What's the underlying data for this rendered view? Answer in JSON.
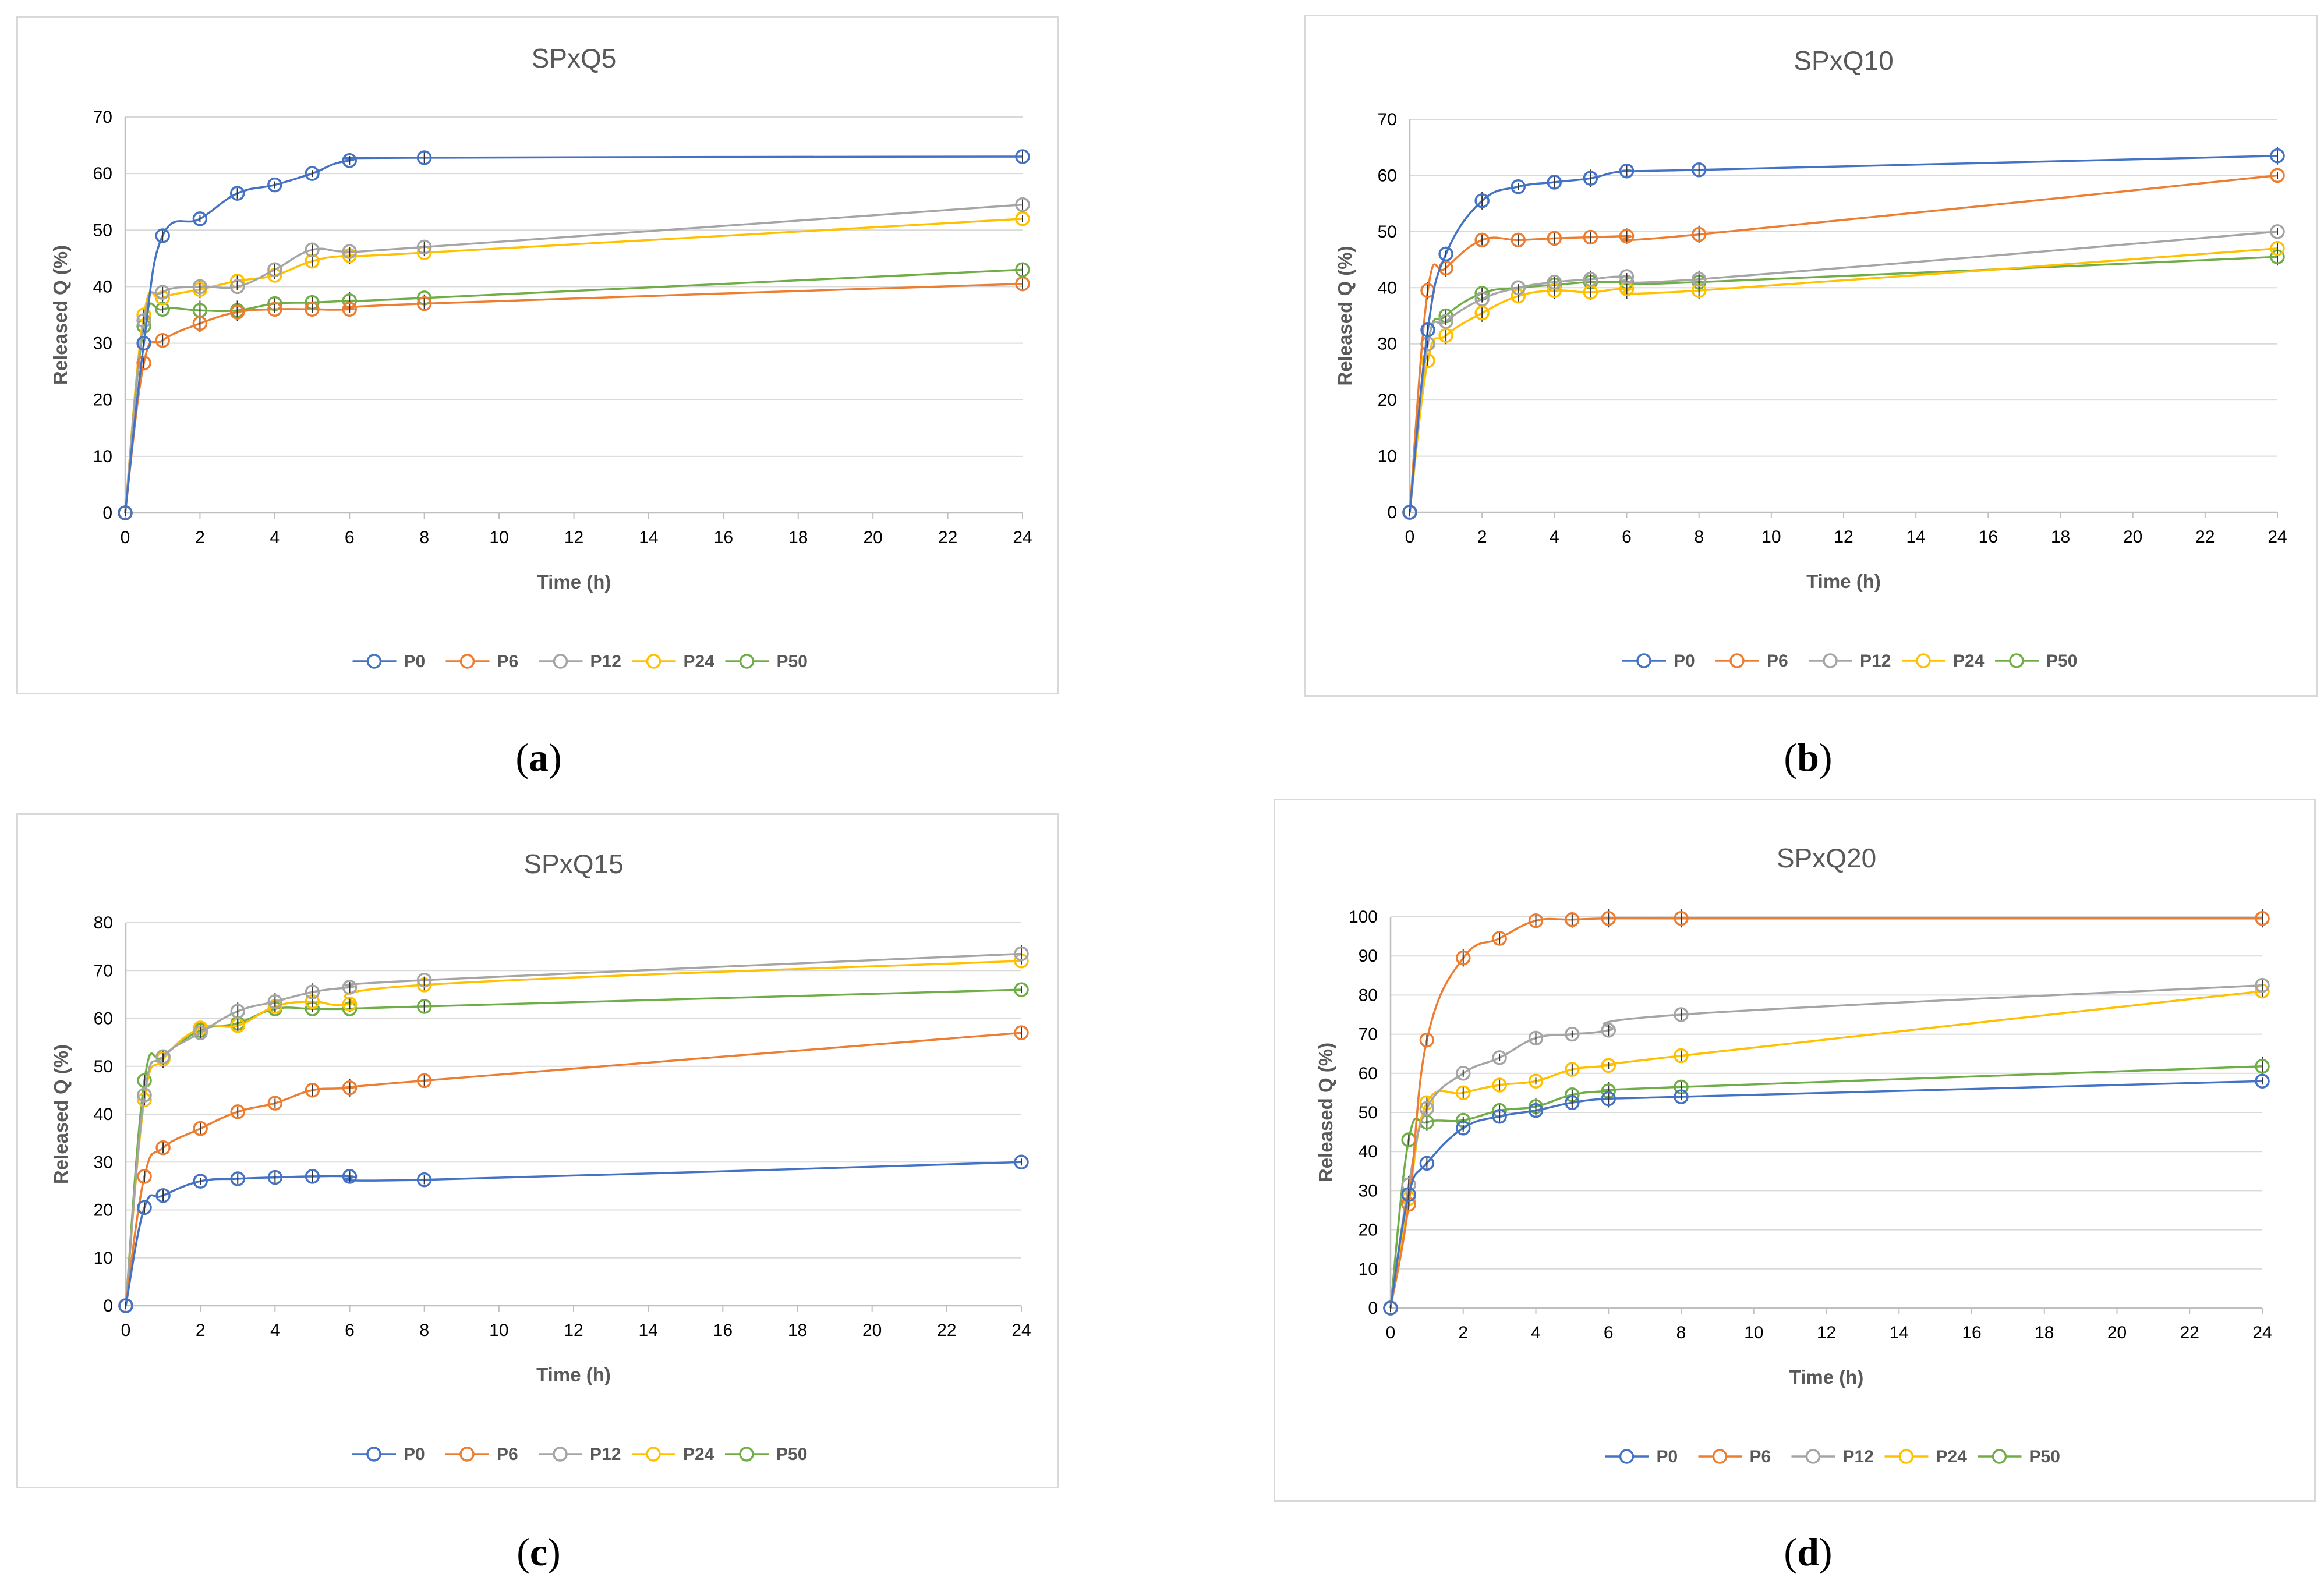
{
  "colors": {
    "P0": "#4472C4",
    "P6": "#ED7D31",
    "P12": "#A5A5A5",
    "P24": "#FFC000",
    "P50": "#70AD47",
    "grid": "#d9d9d9",
    "axis": "#bfbfbf"
  },
  "chart_data": [
    {
      "type": "line",
      "panel": "(a)",
      "panel_letter": "a",
      "title": "SPxQ5",
      "xlabel": "Time (h)",
      "ylabel": "Released Q (%)",
      "xlim": [
        0,
        24
      ],
      "ylim": [
        0,
        70
      ],
      "xticks": [
        0,
        2,
        4,
        6,
        8,
        10,
        12,
        14,
        16,
        18,
        20,
        22,
        24
      ],
      "yticks": [
        0,
        10,
        20,
        30,
        40,
        50,
        60,
        70
      ],
      "grid": true,
      "legend_position": "bottom",
      "x": [
        0,
        0.5,
        1,
        2,
        3,
        4,
        5,
        6,
        8,
        24
      ],
      "series": [
        {
          "name": "P0",
          "values": [
            0,
            30,
            49,
            52,
            56.5,
            58,
            60,
            62.3,
            62.8,
            63
          ]
        },
        {
          "name": "P6",
          "values": [
            0,
            26.5,
            30.5,
            33.5,
            35.5,
            36,
            36,
            36,
            37,
            40.5
          ]
        },
        {
          "name": "P12",
          "values": [
            0,
            34,
            39,
            40,
            40,
            43,
            46.5,
            46.2,
            47,
            54.5
          ]
        },
        {
          "name": "P24",
          "values": [
            0,
            35,
            38,
            39.5,
            41,
            42,
            44.5,
            45.5,
            46,
            52
          ]
        },
        {
          "name": "P50",
          "values": [
            0,
            33,
            36,
            35.8,
            35.8,
            37,
            37.2,
            37.5,
            38,
            43
          ]
        }
      ]
    },
    {
      "type": "line",
      "panel": "(b)",
      "panel_letter": "b",
      "title": "SPxQ10",
      "xlabel": "Time (h)",
      "ylabel": "Released Q (%)",
      "xlim": [
        0,
        24
      ],
      "ylim": [
        0,
        70
      ],
      "xticks": [
        0,
        2,
        4,
        6,
        8,
        10,
        12,
        14,
        16,
        18,
        20,
        22,
        24
      ],
      "yticks": [
        0,
        10,
        20,
        30,
        40,
        50,
        60,
        70
      ],
      "grid": true,
      "legend_position": "bottom",
      "x": [
        0,
        0.5,
        1,
        2,
        3,
        4,
        5,
        6,
        8,
        24
      ],
      "series": [
        {
          "name": "P0",
          "values": [
            0,
            32.5,
            46,
            55.5,
            58,
            58.8,
            59.5,
            60.8,
            61,
            63.5
          ]
        },
        {
          "name": "P6",
          "values": [
            0,
            39.5,
            43.5,
            48.5,
            48.5,
            48.8,
            49,
            49.2,
            49.5,
            60
          ]
        },
        {
          "name": "P12",
          "values": [
            0,
            30,
            34,
            38,
            40,
            41,
            41.5,
            42,
            41.5,
            50
          ]
        },
        {
          "name": "P24",
          "values": [
            0,
            27,
            31.5,
            35.5,
            38.5,
            39.5,
            39.2,
            39.8,
            39.5,
            47
          ]
        },
        {
          "name": "P50",
          "values": [
            0,
            30,
            35,
            39,
            40,
            40.5,
            41,
            41,
            41,
            45.5
          ]
        }
      ]
    },
    {
      "type": "line",
      "panel": "(c)",
      "panel_letter": "c",
      "title": "SPxQ15",
      "xlabel": "Time (h)",
      "ylabel": "Released Q (%)",
      "xlim": [
        0,
        24
      ],
      "ylim": [
        0,
        80
      ],
      "xticks": [
        0,
        2,
        4,
        6,
        8,
        10,
        12,
        14,
        16,
        18,
        20,
        22,
        24
      ],
      "yticks": [
        0,
        10,
        20,
        30,
        40,
        50,
        60,
        70,
        80
      ],
      "grid": true,
      "legend_position": "bottom",
      "x": [
        0,
        0.5,
        1,
        2,
        3,
        4,
        5,
        6,
        8,
        24
      ],
      "series": [
        {
          "name": "P0",
          "values": [
            0,
            20.5,
            23,
            26,
            26.5,
            26.8,
            27,
            27,
            26.3,
            30
          ]
        },
        {
          "name": "P6",
          "values": [
            0,
            27,
            33,
            37,
            40.5,
            42.3,
            45,
            45.5,
            47,
            57
          ]
        },
        {
          "name": "P12",
          "values": [
            0,
            44,
            52,
            57,
            61.5,
            63.5,
            65.5,
            66.5,
            68,
            73.5
          ]
        },
        {
          "name": "P24",
          "values": [
            0,
            43,
            51.5,
            58,
            58.5,
            62.5,
            63.5,
            63,
            67,
            72
          ]
        },
        {
          "name": "P50",
          "values": [
            0,
            47,
            52,
            57.5,
            59,
            62,
            62,
            62,
            62.5,
            66
          ]
        }
      ]
    },
    {
      "type": "line",
      "panel": "(d)",
      "panel_letter": "d",
      "title": "SPxQ20",
      "xlabel": "Time (h)",
      "ylabel": "Released Q (%)",
      "xlim": [
        0,
        24
      ],
      "ylim": [
        0,
        100
      ],
      "xticks": [
        0,
        2,
        4,
        6,
        8,
        10,
        12,
        14,
        16,
        18,
        20,
        22,
        24
      ],
      "yticks": [
        0,
        10,
        20,
        30,
        40,
        50,
        60,
        70,
        80,
        90,
        100
      ],
      "grid": true,
      "legend_position": "bottom",
      "x": [
        0,
        0.5,
        1,
        2,
        3,
        4,
        5,
        6,
        8,
        24
      ],
      "series": [
        {
          "name": "P0",
          "values": [
            0,
            29,
            37,
            46,
            49,
            50.5,
            52.5,
            53.5,
            54,
            58
          ]
        },
        {
          "name": "P6",
          "values": [
            0,
            26.5,
            68.5,
            89.5,
            94.5,
            99,
            99.3,
            99.6,
            99.6,
            99.6
          ]
        },
        {
          "name": "P12",
          "values": [
            0,
            31.5,
            51,
            60,
            64,
            69,
            70,
            71,
            75,
            82.5
          ]
        },
        {
          "name": "P24",
          "values": [
            0,
            28,
            52.5,
            55,
            57,
            58,
            61,
            62,
            64.5,
            81
          ]
        },
        {
          "name": "P50",
          "values": [
            0,
            43,
            47.5,
            48,
            50.5,
            51.5,
            54.5,
            55.5,
            56.5,
            61.8
          ]
        }
      ]
    }
  ]
}
